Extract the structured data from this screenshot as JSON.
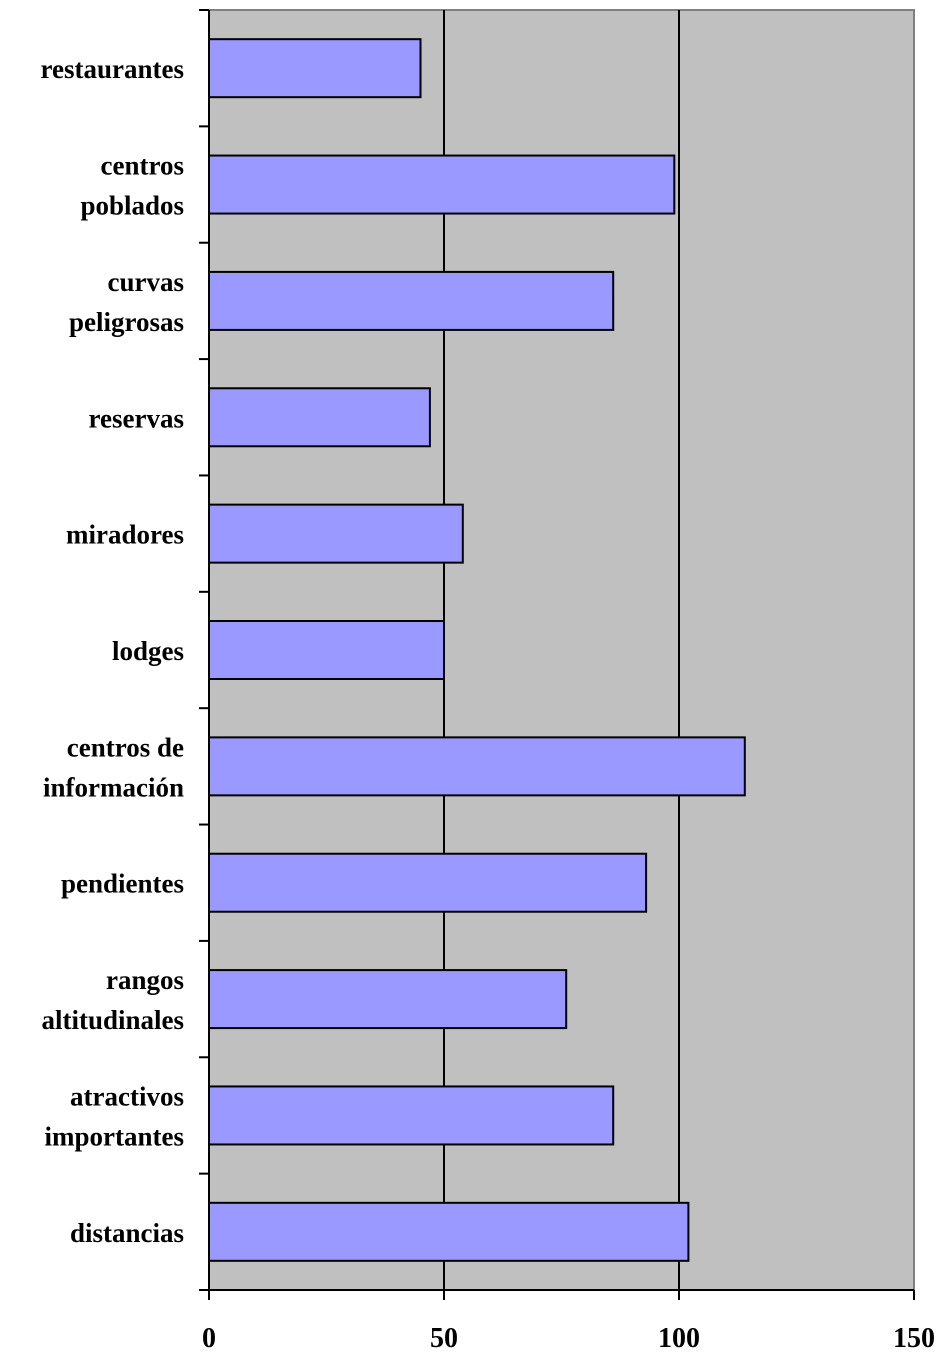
{
  "chart_data": {
    "type": "bar",
    "orientation": "horizontal",
    "title": "",
    "xlabel": "",
    "ylabel": "",
    "xlim": [
      0,
      150
    ],
    "x_ticks": [
      0,
      50,
      100,
      150
    ],
    "x_tick_labels": [
      "0",
      "50",
      "100",
      "150"
    ],
    "grid": true,
    "legend": "none",
    "colors": {
      "bar": "#9999ff",
      "plot_background": "#c0c0c0",
      "gridline": "#000000"
    },
    "categories": [
      [
        "restaurantes"
      ],
      [
        "centros",
        "poblados"
      ],
      [
        "curvas",
        "peligrosas"
      ],
      [
        "reservas"
      ],
      [
        "miradores"
      ],
      [
        "lodges"
      ],
      [
        "centros de",
        "información"
      ],
      [
        "pendientes"
      ],
      [
        "rangos",
        "altitudinales"
      ],
      [
        "atractivos",
        "importantes"
      ],
      [
        "distancias"
      ]
    ],
    "values": [
      45,
      99,
      86,
      47,
      54,
      50,
      114,
      93,
      76,
      86,
      102
    ]
  }
}
